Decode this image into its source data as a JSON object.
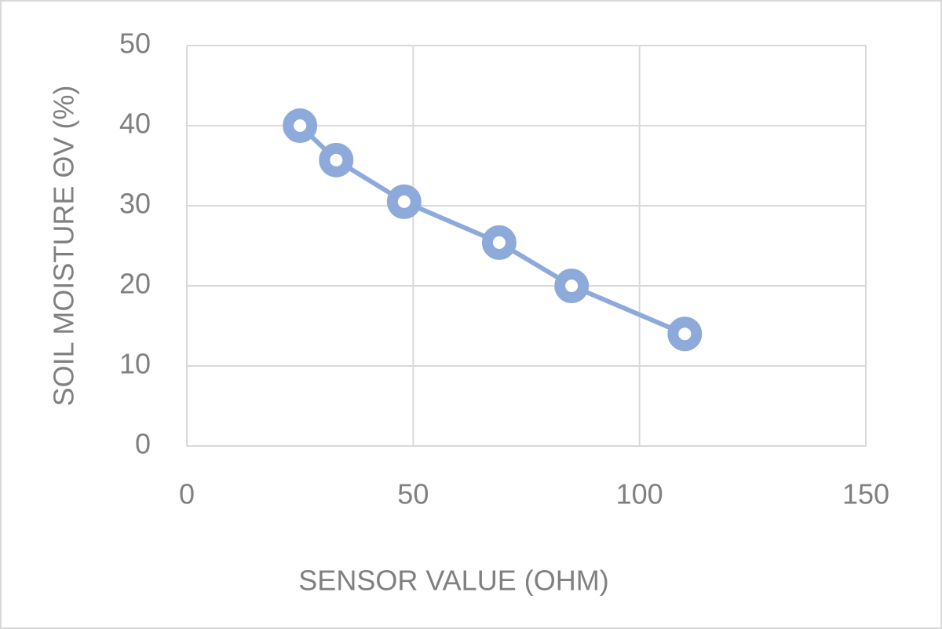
{
  "chart_data": {
    "type": "line",
    "x_label": "SENSOR VALUE (OHM)",
    "y_label": "SOIL MOISTURE ΘV (%)",
    "x": [
      25,
      33,
      48,
      69,
      85,
      110
    ],
    "series": [
      {
        "name": "Soil moisture",
        "color": "#8eaadb",
        "values": [
          40,
          35.7,
          30.5,
          25.4,
          20,
          14
        ]
      }
    ],
    "xlim": [
      0,
      150
    ],
    "xticks": [
      0,
      50,
      100,
      150
    ],
    "ylim": [
      0,
      50
    ],
    "yticks": [
      0,
      10,
      20,
      30,
      40,
      50
    ],
    "grid": true
  }
}
